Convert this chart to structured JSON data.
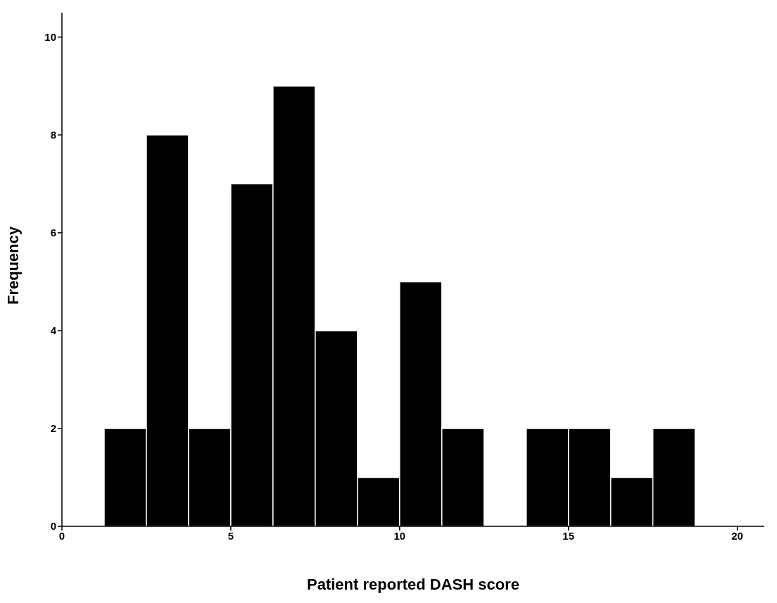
{
  "chart_data": {
    "type": "histogram",
    "xlabel": "Patient  reported DASH score",
    "ylabel": "Frequency",
    "bins": [
      1.25,
      2.5,
      3.75,
      5,
      6.25,
      7.5,
      8.75,
      10,
      11.25,
      12.5,
      13.75,
      15,
      16.25,
      17.5,
      18.75
    ],
    "values": [
      2,
      8,
      2,
      7,
      9,
      4,
      1,
      5,
      2,
      0,
      2,
      2,
      1,
      2
    ],
    "color": "#000000",
    "xlim": [
      0,
      20.8
    ],
    "xticks": [
      0,
      5,
      10,
      15,
      20
    ],
    "ylim": [
      0,
      10.5
    ],
    "yticks": [
      0,
      2,
      4,
      6,
      8,
      10
    ],
    "grid": false
  }
}
